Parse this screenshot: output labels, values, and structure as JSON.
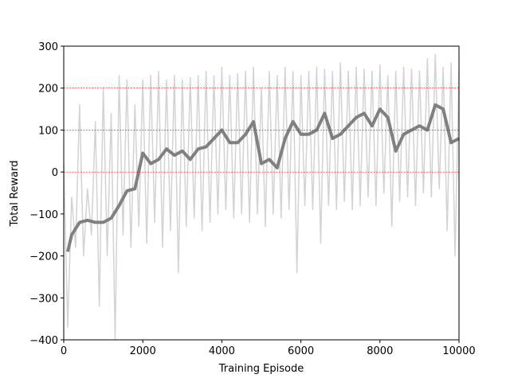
{
  "chart_data": {
    "type": "line",
    "xlabel": "Training Episode",
    "ylabel": "Total Reward",
    "xlim": [
      0,
      10000
    ],
    "xticks": [
      0,
      2000,
      4000,
      6000,
      8000,
      10000
    ],
    "ylim": [
      -400,
      300
    ],
    "yticks": [
      {
        "value": -400,
        "label": "−400"
      },
      {
        "value": -300,
        "label": "−300"
      },
      {
        "value": -200,
        "label": "−200"
      },
      {
        "value": -100,
        "label": "−100"
      },
      0,
      100,
      200,
      300
    ],
    "hlines": {
      "values": [
        0,
        100,
        200
      ],
      "color": "#ff0000",
      "style": "dashed"
    },
    "series": [
      {
        "color": "#d3d3d3",
        "line_width": 1.5,
        "x": [
          0,
          100,
          200,
          300,
          400,
          500,
          600,
          700,
          800,
          900,
          1000,
          1100,
          1200,
          1300,
          1400,
          1500,
          1600,
          1700,
          1800,
          1900,
          2000,
          2100,
          2200,
          2300,
          2400,
          2500,
          2600,
          2700,
          2800,
          2900,
          3000,
          3100,
          3200,
          3300,
          3400,
          3500,
          3600,
          3700,
          3800,
          3900,
          4000,
          4100,
          4200,
          4300,
          4400,
          4500,
          4600,
          4700,
          4800,
          4900,
          5000,
          5100,
          5200,
          5300,
          5400,
          5500,
          5600,
          5700,
          5800,
          5900,
          6000,
          6100,
          6200,
          6300,
          6400,
          6500,
          6600,
          6700,
          6800,
          6900,
          7000,
          7100,
          7200,
          7300,
          7400,
          7500,
          7600,
          7700,
          7800,
          7900,
          8000,
          8100,
          8200,
          8300,
          8400,
          8500,
          8600,
          8700,
          8800,
          8900,
          9000,
          9100,
          9200,
          9300,
          9400,
          9500,
          9600,
          9700,
          9800,
          9900,
          10000
        ],
        "values": [
          20,
          -370,
          -60,
          -180,
          160,
          -200,
          -40,
          -150,
          120,
          -320,
          200,
          -200,
          140,
          -400,
          230,
          -150,
          220,
          -180,
          160,
          -130,
          220,
          -170,
          230,
          -120,
          240,
          -180,
          220,
          -140,
          230,
          -240,
          220,
          -130,
          225,
          -110,
          230,
          -140,
          240,
          -120,
          230,
          -100,
          250,
          -90,
          230,
          -110,
          235,
          -100,
          240,
          -120,
          250,
          -100,
          200,
          -130,
          240,
          -100,
          230,
          -110,
          250,
          -90,
          240,
          -240,
          230,
          -80,
          240,
          -90,
          250,
          -170,
          245,
          -80,
          240,
          -90,
          260,
          -70,
          240,
          -90,
          250,
          -80,
          245,
          -60,
          240,
          -80,
          255,
          -50,
          230,
          -130,
          240,
          -70,
          250,
          -60,
          245,
          -80,
          240,
          -50,
          270,
          -60,
          280,
          -40,
          250,
          -140,
          260,
          -200,
          240
        ]
      },
      {
        "color": "#808080",
        "line_width": 4,
        "x": [
          100,
          200,
          400,
          600,
          800,
          1000,
          1200,
          1400,
          1600,
          1800,
          2000,
          2200,
          2400,
          2600,
          2800,
          3000,
          3200,
          3400,
          3600,
          3800,
          4000,
          4200,
          4400,
          4600,
          4800,
          5000,
          5200,
          5400,
          5600,
          5800,
          6000,
          6200,
          6400,
          6600,
          6800,
          7000,
          7200,
          7400,
          7600,
          7800,
          8000,
          8200,
          8400,
          8600,
          8800,
          9000,
          9200,
          9400,
          9600,
          9800,
          10000
        ],
        "values": [
          -190,
          -150,
          -120,
          -115,
          -120,
          -120,
          -110,
          -80,
          -45,
          -40,
          45,
          20,
          30,
          55,
          40,
          50,
          30,
          55,
          60,
          80,
          100,
          70,
          70,
          90,
          120,
          20,
          30,
          10,
          80,
          120,
          90,
          90,
          100,
          140,
          80,
          90,
          110,
          130,
          140,
          110,
          150,
          130,
          50,
          90,
          100,
          110,
          100,
          160,
          150,
          70,
          80
        ]
      }
    ]
  }
}
